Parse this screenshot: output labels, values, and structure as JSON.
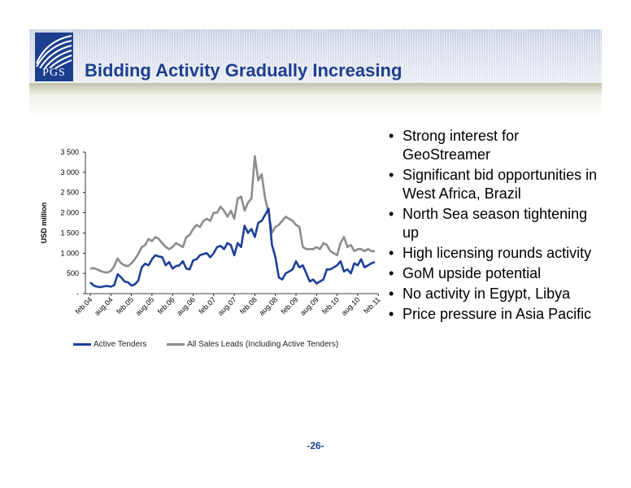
{
  "header": {
    "title": "Bidding Activity Gradually Increasing",
    "logo_text": "PGS"
  },
  "chart_data": {
    "type": "line",
    "ylabel": "USD million",
    "xlabel": "",
    "ylim": [
      0,
      3500
    ],
    "yticks": [
      "-",
      "500",
      "1 000",
      "1 500",
      "2 000",
      "2 500",
      "3 000",
      "3 500"
    ],
    "ytick_values": [
      0,
      500,
      1000,
      1500,
      2000,
      2500,
      3000,
      3500
    ],
    "xtick_labels": [
      "feb.04",
      "aug.04",
      "feb.05",
      "aug.05",
      "feb.06",
      "aug.06",
      "feb.07",
      "aug.07",
      "feb.08",
      "aug.08",
      "feb.09",
      "aug.09",
      "feb.10",
      "aug.10",
      "feb.11"
    ],
    "legend_position": "bottom",
    "series": [
      {
        "name": "Active Tenders",
        "color": "#1d3f9a",
        "values": [
          280,
          200,
          170,
          160,
          180,
          190,
          170,
          210,
          480,
          400,
          300,
          280,
          200,
          230,
          320,
          650,
          740,
          700,
          850,
          950,
          920,
          900,
          700,
          780,
          620,
          680,
          700,
          800,
          620,
          600,
          820,
          850,
          950,
          980,
          1000,
          900,
          1000,
          1150,
          1180,
          1100,
          1250,
          1200,
          950,
          1250,
          1150,
          1680,
          1500,
          1600,
          1400,
          1750,
          1800,
          1950,
          2100,
          1200,
          900,
          400,
          350,
          500,
          550,
          600,
          800,
          650,
          700,
          500,
          300,
          350,
          250,
          300,
          350,
          600,
          600,
          650,
          700,
          800,
          550,
          600,
          500,
          750,
          700,
          850,
          650,
          700,
          750,
          780
        ]
      },
      {
        "name": "All Sales Leads (Including Active Tenders)",
        "color": "#8c8c8c",
        "values": [
          620,
          630,
          600,
          560,
          530,
          520,
          560,
          680,
          870,
          750,
          700,
          680,
          750,
          850,
          980,
          1150,
          1200,
          1350,
          1300,
          1400,
          1350,
          1250,
          1150,
          1100,
          1150,
          1250,
          1200,
          1150,
          1400,
          1450,
          1600,
          1700,
          1650,
          1800,
          1850,
          1800,
          2000,
          2000,
          2150,
          2050,
          1900,
          2050,
          1850,
          2350,
          2400,
          2050,
          2250,
          2350,
          3400,
          2800,
          2950,
          2350,
          2000,
          1500,
          1650,
          1700,
          1800,
          1900,
          1850,
          1800,
          1700,
          1650,
          1150,
          1100,
          1100,
          1100,
          1150,
          1100,
          1250,
          1200,
          1050,
          1000,
          950,
          1250,
          1400,
          1150,
          1200,
          1050,
          1100,
          1100,
          1050,
          1100,
          1050,
          1050
        ]
      }
    ]
  },
  "bullets": [
    "Strong interest for GeoStreamer",
    "Significant bid opportunities in West Africa, Brazil",
    "North Sea season tightening up",
    "High licensing rounds activity",
    "GoM upside potential",
    "No activity in Egypt, Libya",
    "Price pressure in Asia Pacific"
  ],
  "bullet_glyph": "•",
  "page_number": "-26-"
}
